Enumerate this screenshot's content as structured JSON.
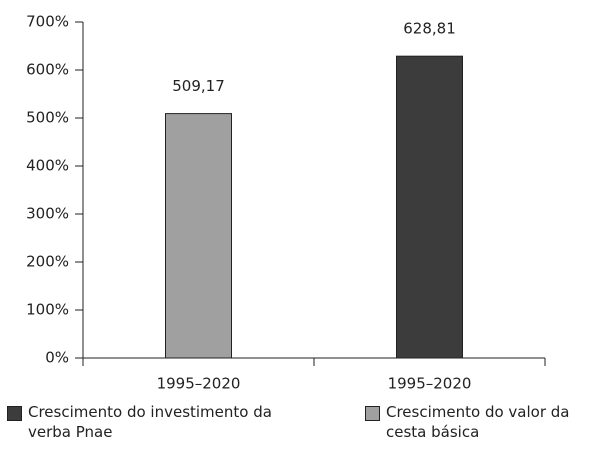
{
  "chart_data": {
    "type": "bar",
    "categories": [
      "1995–2020",
      "1995–2020"
    ],
    "series": [
      {
        "name": "Crescimento do investimento da verba Pnae",
        "color": "#3c3c3c",
        "values": [
          null,
          628.81
        ],
        "value_labels": [
          null,
          "628,81"
        ]
      },
      {
        "name": "Crescimento do valor da cesta básica",
        "color": "#a0a0a0",
        "values": [
          509.17,
          null
        ],
        "value_labels": [
          "509,17",
          null
        ]
      }
    ],
    "ylim": [
      0,
      700
    ],
    "yticks": [
      {
        "value": 0,
        "label": "0%"
      },
      {
        "value": 100,
        "label": "100%"
      },
      {
        "value": 200,
        "label": "200%"
      },
      {
        "value": 300,
        "label": "300%"
      },
      {
        "value": 400,
        "label": "400%"
      },
      {
        "value": 500,
        "label": "500%"
      },
      {
        "value": 600,
        "label": "600%"
      },
      {
        "value": 700,
        "label": "700%"
      }
    ],
    "legend": "bottom"
  }
}
